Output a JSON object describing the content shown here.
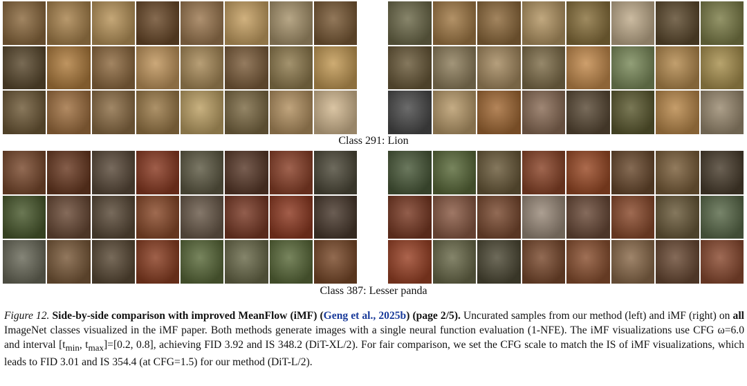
{
  "panels": [
    {
      "label": "Class 291: Lion",
      "grids": [
        {
          "id": "lion-ours",
          "description_method": "left",
          "colors": [
            "#8c6a3f",
            "#a8824c",
            "#b8945a",
            "#6b4a2a",
            "#9c7850",
            "#c6a062",
            "#a7936c",
            "#7a5a36",
            "#5b4a2f",
            "#b07d3e",
            "#8e6a40",
            "#c0955c",
            "#a88a58",
            "#7d5e3c",
            "#8f7b4e",
            "#c39a55",
            "#6f5a38",
            "#a07040",
            "#8c6d45",
            "#9b7a48",
            "#bca064",
            "#7c6a44",
            "#b29060",
            "#d2b890"
          ]
        },
        {
          "id": "lion-imf",
          "description_method": "right",
          "colors": [
            "#6d6a4a",
            "#a27a46",
            "#8e6a3c",
            "#b39563",
            "#88703c",
            "#c0ac8c",
            "#5d4a2e",
            "#7c7d48",
            "#6a5a3a",
            "#8e7e5c",
            "#a58a60",
            "#7f6e4a",
            "#c38a4c",
            "#7a8a5a",
            "#b48a4e",
            "#a8904e",
            "#4a4a4a",
            "#b89a6a",
            "#a36a35",
            "#8a6c56",
            "#5a4a36",
            "#5c5a30",
            "#b9884a",
            "#9a8a70"
          ]
        }
      ]
    },
    {
      "label": "Class 387: Lesser panda",
      "grids": [
        {
          "id": "panda-ours",
          "description_method": "left",
          "colors": [
            "#7a4a2e",
            "#6a3a22",
            "#5a4a3a",
            "#8a3a22",
            "#5e5a44",
            "#5a3a2a",
            "#8a4028",
            "#4e4a3a",
            "#4a5a2e",
            "#6a4a36",
            "#5a4a38",
            "#8a4a2a",
            "#6a5a4a",
            "#7a3a26",
            "#8e3a22",
            "#4a3a2e",
            "#6a6a5a",
            "#7a5a3a",
            "#5a4a36",
            "#8a3e22",
            "#5a6a3a",
            "#6a6a4a",
            "#5a6a3a",
            "#7a4a2a"
          ]
        },
        {
          "id": "panda-imf",
          "description_method": "right",
          "colors": [
            "#4a5a3a",
            "#5a6a3a",
            "#6a5a3a",
            "#8a4428",
            "#9a4a26",
            "#6a4a2e",
            "#7a5e3a",
            "#4a3e2e",
            "#7a3a24",
            "#8a5a44",
            "#7a4a30",
            "#9a8a7a",
            "#6a4a38",
            "#8a4a2c",
            "#6a5a3a",
            "#5a6a4a",
            "#9a4226",
            "#6a6a4a",
            "#4e4a36",
            "#7a4a2e",
            "#8a5030",
            "#8a6a4a",
            "#6a4a34",
            "#8a4a30"
          ]
        }
      ]
    }
  ],
  "caption": {
    "figure_number": "Figure 12.",
    "title": "Side-by-side comparison with improved MeanFlow (iMF) (",
    "citation": "Geng et al., 2025b",
    "title_end": ") (page 2/5).",
    "body_1": " Uncurated samples from our method (left) and iMF (right) on ",
    "bold_all": "all",
    "body_2": " ImageNet classes visualized in the iMF paper. Both methods generate images with a single neural function evaluation (1-NFE). The iMF visualizations use CFG ω=6.0 and interval [t",
    "sub_min": "min",
    "comma": ", t",
    "sub_max": "max",
    "body_3": "]=[0.2, 0.8], achieving FID 3.92 and IS 348.2 (DiT-XL/2). For fair comparison, we set the CFG scale to match the IS of iMF visualizations, which leads to FID 3.01 and IS 354.4 (at CFG=1.5) for our method (DiT-L/2)."
  }
}
